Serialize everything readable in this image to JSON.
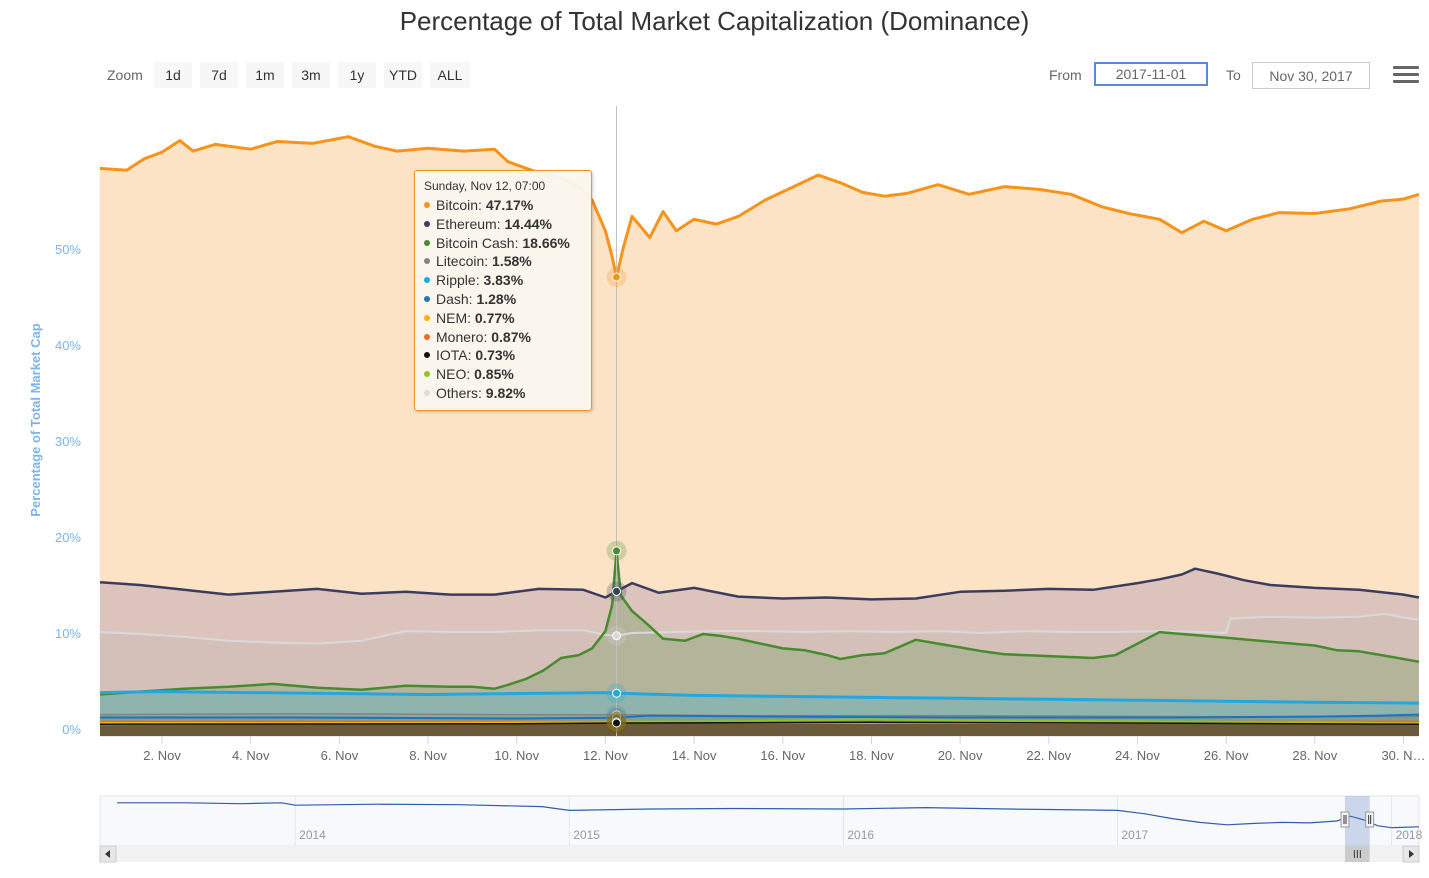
{
  "header": {
    "title": "Percentage of Total Market Capitalization (Dominance)"
  },
  "range_selector": {
    "zoom_label": "Zoom",
    "buttons": [
      "1d",
      "7d",
      "1m",
      "3m",
      "1y",
      "YTD",
      "ALL"
    ],
    "from_label": "From",
    "from_value": "2017-11-01",
    "to_label": "To",
    "to_value": "Nov 30, 2017"
  },
  "menu": {
    "icon": "hamburger-menu-icon"
  },
  "chart_data": {
    "type": "area",
    "title": "Percentage of Total Market Capitalization (Dominance)",
    "ylabel": "Percentage of Total Market Cap",
    "ylim": [
      0,
      60
    ],
    "xlim": [
      0.6,
      30.35
    ],
    "y_ticks": [
      "0%",
      "10%",
      "20%",
      "30%",
      "40%",
      "50%"
    ],
    "x_ticks": [
      {
        "day": 2,
        "label": "2. Nov"
      },
      {
        "day": 4,
        "label": "4. Nov"
      },
      {
        "day": 6,
        "label": "6. Nov"
      },
      {
        "day": 8,
        "label": "8. Nov"
      },
      {
        "day": 10,
        "label": "10. Nov"
      },
      {
        "day": 12,
        "label": "12. Nov"
      },
      {
        "day": 14,
        "label": "14. Nov"
      },
      {
        "day": 16,
        "label": "16. Nov"
      },
      {
        "day": 18,
        "label": "18. Nov"
      },
      {
        "day": 20,
        "label": "20. Nov"
      },
      {
        "day": 22,
        "label": "22. Nov"
      },
      {
        "day": 24,
        "label": "24. Nov"
      },
      {
        "day": 26,
        "label": "26. Nov"
      },
      {
        "day": 28,
        "label": "28. Nov"
      },
      {
        "day": 30,
        "label": "30. N…"
      }
    ],
    "grid": true,
    "legend": "none",
    "series": [
      {
        "name": "Bitcoin",
        "color": "#f7931a",
        "fill": "#fde3c6",
        "width": 3,
        "x": [
          0.6,
          1.2,
          1.6,
          2.0,
          2.4,
          2.7,
          3.2,
          4.0,
          4.6,
          5.4,
          6.2,
          6.8,
          7.3,
          8.0,
          8.8,
          9.5,
          9.8,
          10.4,
          11.0,
          11.4,
          11.7,
          12.0,
          12.15,
          12.25,
          12.4,
          12.6,
          13.0,
          13.3,
          13.6,
          14.0,
          14.5,
          15.0,
          15.6,
          16.2,
          16.8,
          17.3,
          17.8,
          18.3,
          18.8,
          19.5,
          20.2,
          21.0,
          21.8,
          22.5,
          23.2,
          23.8,
          24.5,
          25.0,
          25.5,
          26.0,
          26.6,
          27.2,
          28.0,
          28.8,
          29.5,
          30.0,
          30.35
        ],
        "y": [
          58.5,
          58.3,
          59.5,
          60.2,
          61.4,
          60.3,
          61.0,
          60.5,
          61.3,
          61.1,
          61.8,
          60.8,
          60.3,
          60.6,
          60.3,
          60.5,
          59.2,
          58.2,
          57.5,
          56.6,
          55.2,
          52.0,
          49.3,
          47.17,
          50.2,
          53.5,
          51.3,
          54.0,
          52.0,
          53.2,
          52.7,
          53.5,
          55.2,
          56.5,
          57.8,
          57.0,
          56.0,
          55.6,
          55.9,
          56.8,
          55.8,
          56.6,
          56.3,
          55.8,
          54.5,
          53.8,
          53.2,
          51.8,
          53.0,
          52.0,
          53.2,
          53.9,
          53.8,
          54.3,
          55.1,
          55.3,
          55.8
        ]
      },
      {
        "name": "Ethereum",
        "color": "#3c3c5f",
        "fill": "#dcc4bc",
        "width": 2.5,
        "x": [
          0.6,
          1.5,
          2.5,
          3.5,
          4.5,
          5.5,
          6.5,
          7.5,
          8.5,
          9.5,
          10.5,
          11.5,
          12.0,
          12.25,
          12.6,
          13.2,
          14.0,
          15.0,
          16.0,
          17.0,
          18.0,
          19.0,
          20.0,
          21.0,
          22.0,
          23.0,
          24.0,
          24.5,
          25.0,
          25.3,
          25.8,
          26.4,
          27.0,
          28.0,
          29.0,
          30.0,
          30.35
        ],
        "y": [
          15.4,
          15.1,
          14.6,
          14.1,
          14.4,
          14.7,
          14.2,
          14.4,
          14.1,
          14.1,
          14.7,
          14.6,
          13.8,
          14.44,
          15.3,
          14.3,
          14.8,
          13.9,
          13.7,
          13.8,
          13.6,
          13.7,
          14.4,
          14.5,
          14.7,
          14.6,
          15.3,
          15.7,
          16.2,
          16.8,
          16.3,
          15.6,
          15.1,
          14.8,
          14.6,
          14.1,
          13.8
        ]
      },
      {
        "name": "Others",
        "color": "#d9d9d9",
        "fill": "#d4c0b8",
        "width": 2,
        "x": [
          0.6,
          1.5,
          2.5,
          3.5,
          4.5,
          5.5,
          6.5,
          7.5,
          8.5,
          9.5,
          10.5,
          11.5,
          12.0,
          12.25,
          12.6,
          13.5,
          14.5,
          15.5,
          16.5,
          17.5,
          18.5,
          19.5,
          20.5,
          21.5,
          22.5,
          23.5,
          24.5,
          25.5,
          26.0,
          26.1,
          27.0,
          28.0,
          29.0,
          29.6,
          30.0,
          30.35
        ],
        "y": [
          10.2,
          10.0,
          9.7,
          9.3,
          9.1,
          9.0,
          9.3,
          10.3,
          10.2,
          10.2,
          10.4,
          10.4,
          9.9,
          9.82,
          10.1,
          10.2,
          10.3,
          10.3,
          10.2,
          10.3,
          10.2,
          10.3,
          10.1,
          10.3,
          10.2,
          10.2,
          10.3,
          10.2,
          10.1,
          11.6,
          11.8,
          11.7,
          11.8,
          12.1,
          11.7,
          11.5
        ]
      },
      {
        "name": "Bitcoin Cash",
        "color": "#478b2f",
        "fill": "#b3b49a",
        "width": 2.5,
        "x": [
          0.6,
          1.5,
          2.5,
          3.5,
          4.5,
          5.5,
          6.5,
          7.5,
          8.5,
          9.0,
          9.5,
          9.8,
          10.2,
          10.6,
          11.0,
          11.4,
          11.7,
          12.0,
          12.15,
          12.25,
          12.35,
          12.6,
          12.8,
          13.0,
          13.3,
          13.8,
          14.2,
          14.6,
          15.0,
          15.5,
          16.0,
          16.5,
          17.0,
          17.3,
          17.8,
          18.3,
          19.0,
          19.5,
          20.0,
          20.5,
          21.0,
          22.0,
          23.0,
          23.5,
          24.0,
          24.5,
          25.0,
          25.5,
          26.0,
          27.0,
          28.0,
          28.5,
          29.0,
          29.5,
          30.0,
          30.35
        ],
        "y": [
          3.7,
          4.0,
          4.3,
          4.5,
          4.8,
          4.4,
          4.2,
          4.6,
          4.5,
          4.5,
          4.3,
          4.7,
          5.3,
          6.2,
          7.5,
          7.8,
          8.5,
          10.3,
          13.0,
          18.66,
          14.0,
          12.4,
          11.6,
          10.8,
          9.5,
          9.3,
          10.0,
          9.8,
          9.5,
          9.0,
          8.5,
          8.3,
          7.8,
          7.4,
          7.8,
          8.0,
          9.4,
          9.0,
          8.6,
          8.2,
          7.9,
          7.7,
          7.5,
          7.8,
          9.0,
          10.2,
          10.0,
          9.8,
          9.6,
          9.2,
          8.8,
          8.3,
          8.2,
          7.8,
          7.4,
          7.1
        ]
      },
      {
        "name": "Ripple",
        "color": "#23a7e0",
        "fill": "#8fb4ad",
        "width": 3,
        "x": [
          0.6,
          2.0,
          4.0,
          6.0,
          8.0,
          10.0,
          12.0,
          12.25,
          14.0,
          16.0,
          18.0,
          20.0,
          22.0,
          24.0,
          26.0,
          28.0,
          30.35
        ],
        "y": [
          3.9,
          4.0,
          3.9,
          3.8,
          3.7,
          3.8,
          3.9,
          3.83,
          3.6,
          3.5,
          3.4,
          3.3,
          3.2,
          3.1,
          3.0,
          2.9,
          2.8
        ]
      },
      {
        "name": "Litecoin",
        "color": "#838383",
        "fill": "#8aa89e",
        "width": 1.5,
        "x": [
          0.6,
          5.0,
          10.0,
          12.25,
          15.0,
          20.0,
          25.0,
          30.35
        ],
        "y": [
          1.6,
          1.7,
          1.6,
          1.58,
          1.5,
          1.5,
          1.4,
          1.4
        ]
      },
      {
        "name": "Dash",
        "color": "#1c75bc",
        "fill": "#809f93",
        "width": 2,
        "x": [
          0.6,
          5.0,
          10.0,
          12.25,
          13.0,
          16.0,
          20.0,
          25.0,
          28.0,
          29.5,
          30.35
        ],
        "y": [
          1.3,
          1.3,
          1.2,
          1.28,
          1.5,
          1.4,
          1.3,
          1.3,
          1.4,
          1.5,
          1.6
        ]
      },
      {
        "name": "Monero",
        "color": "#f26822",
        "fill": "#8a8f70",
        "width": 1.5,
        "x": [
          0.6,
          10.0,
          12.25,
          20.0,
          30.35
        ],
        "y": [
          0.9,
          0.9,
          0.87,
          0.85,
          0.9
        ]
      },
      {
        "name": "NEO",
        "color": "#94c11f",
        "fill": "#7d9a52",
        "width": 2,
        "x": [
          0.6,
          5.0,
          10.0,
          12.25,
          15.0,
          18.0,
          20.0,
          24.0,
          28.0,
          30.35
        ],
        "y": [
          0.6,
          0.7,
          0.8,
          0.85,
          0.9,
          1.1,
          1.0,
          0.9,
          0.8,
          0.7
        ]
      },
      {
        "name": "NEM",
        "color": "#f4b400",
        "fill": "#8b8a3e",
        "width": 1.5,
        "x": [
          0.6,
          12.25,
          20.0,
          30.35
        ],
        "y": [
          0.75,
          0.77,
          0.7,
          0.7
        ]
      },
      {
        "name": "IOTA",
        "color": "#111111",
        "fill": "#6b5a3a",
        "width": 1.5,
        "x": [
          0.6,
          10.0,
          12.25,
          18.0,
          25.0,
          30.35
        ],
        "y": [
          0.6,
          0.65,
          0.73,
          0.8,
          0.7,
          0.6
        ]
      }
    ],
    "tooltip": {
      "header": "Sunday, Nov 12, 07:00",
      "rows": [
        {
          "name": "Bitcoin",
          "value": "47.17%",
          "color": "#f7931a"
        },
        {
          "name": "Ethereum",
          "value": "14.44%",
          "color": "#3c3c5f"
        },
        {
          "name": "Bitcoin Cash",
          "value": "18.66%",
          "color": "#478b2f"
        },
        {
          "name": "Litecoin",
          "value": "1.58%",
          "color": "#838383"
        },
        {
          "name": "Ripple",
          "value": "3.83%",
          "color": "#23a7e0"
        },
        {
          "name": "Dash",
          "value": "1.28%",
          "color": "#1c75bc"
        },
        {
          "name": "NEM",
          "value": "0.77%",
          "color": "#f4b400"
        },
        {
          "name": "Monero",
          "value": "0.87%",
          "color": "#f26822"
        },
        {
          "name": "IOTA",
          "value": "0.73%",
          "color": "#111111"
        },
        {
          "name": "NEO",
          "value": "0.85%",
          "color": "#94c11f"
        },
        {
          "name": "Others",
          "value": "9.82%",
          "color": "#dddddd"
        }
      ]
    },
    "crosshair_day": 12.25,
    "navigator": {
      "year_ticks": [
        {
          "year": 2014,
          "label": "2014"
        },
        {
          "year": 2015,
          "label": "2015"
        },
        {
          "year": 2016,
          "label": "2016"
        },
        {
          "year": 2017,
          "label": "2017"
        },
        {
          "year": 2018,
          "label": "2018"
        }
      ],
      "xlim": [
        2013.35,
        2018.1
      ],
      "series_x": [
        2013.35,
        2013.6,
        2013.8,
        2013.95,
        2014.0,
        2014.3,
        2014.6,
        2014.9,
        2015.0,
        2015.3,
        2015.6,
        2016.0,
        2016.3,
        2016.6,
        2016.9,
        2017.0,
        2017.1,
        2017.2,
        2017.3,
        2017.4,
        2017.5,
        2017.6,
        2017.7,
        2017.8,
        2017.85,
        2017.9,
        2017.95,
        2018.0,
        2018.1
      ],
      "series_y": [
        88,
        88,
        86,
        88,
        83,
        85,
        84,
        80,
        72,
        75,
        76,
        75,
        78,
        75,
        73,
        72,
        65,
        55,
        47,
        42,
        45,
        47,
        46,
        50,
        60,
        52,
        40,
        36,
        38
      ],
      "window": [
        2017.83,
        2017.92
      ]
    }
  }
}
